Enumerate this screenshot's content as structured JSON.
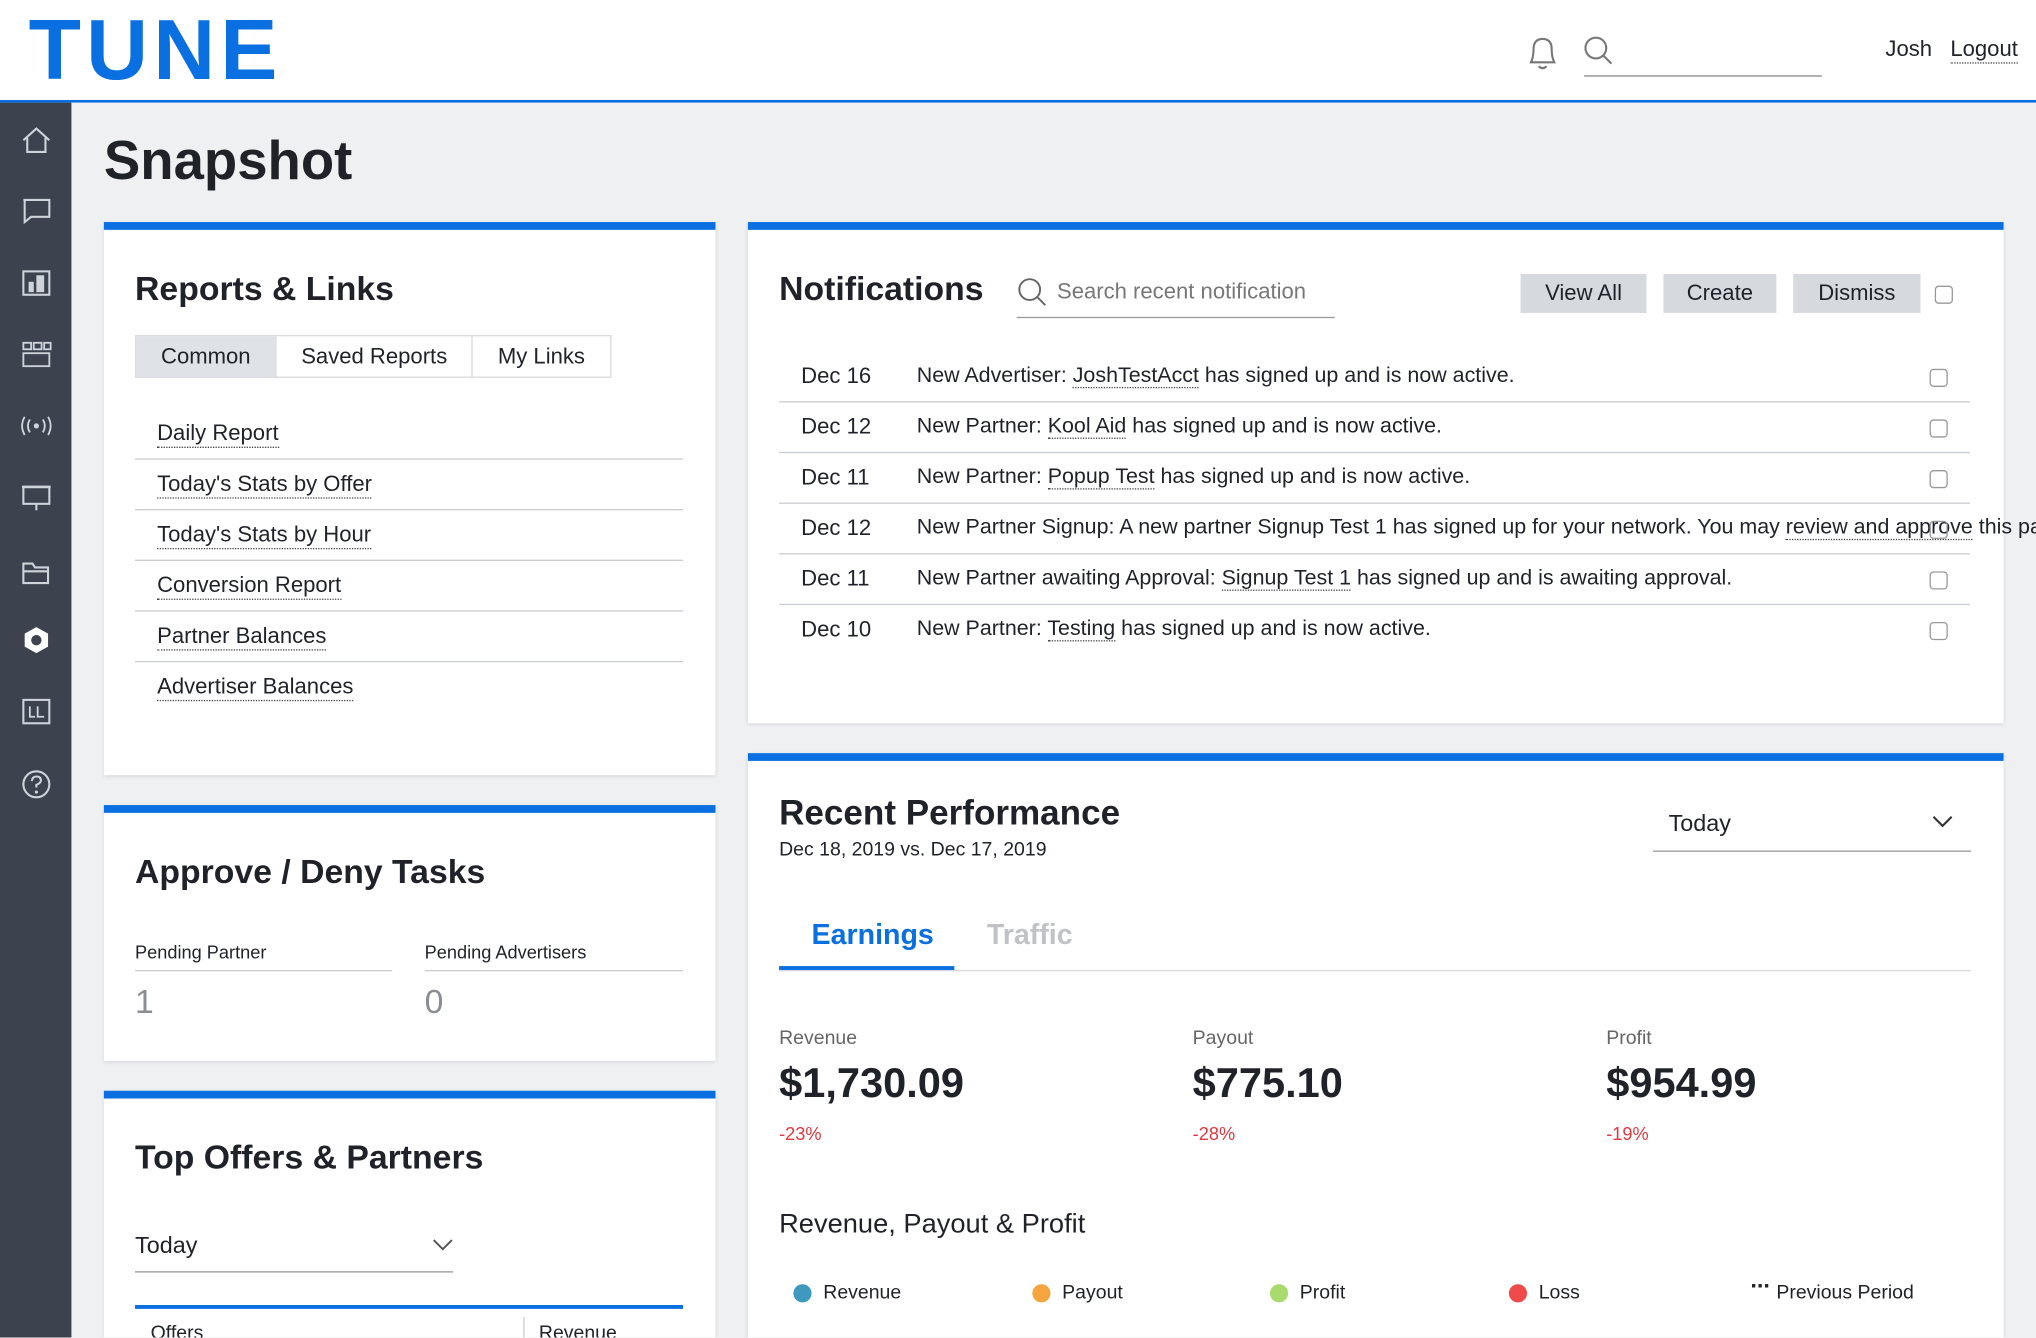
{
  "header": {
    "logo": "TUNE",
    "user": "Josh",
    "logout": "Logout"
  },
  "page_title": "Snapshot",
  "reports": {
    "title": "Reports & Links",
    "tabs": [
      "Common",
      "Saved Reports",
      "My Links"
    ],
    "links": [
      "Daily Report",
      "Today's Stats by Offer",
      "Today's Stats by Hour",
      "Conversion Report",
      "Partner Balances",
      "Advertiser Balances"
    ]
  },
  "approve": {
    "title": "Approve / Deny Tasks",
    "items": [
      {
        "label": "Pending Partner",
        "value": 1
      },
      {
        "label": "Pending Advertisers",
        "value": 0
      }
    ]
  },
  "top_offers": {
    "title": "Top Offers & Partners",
    "period": "Today",
    "columns": [
      "Offers",
      "Revenue"
    ]
  },
  "notifications": {
    "title": "Notifications",
    "search_placeholder": "Search recent notification",
    "buttons": [
      "View All",
      "Create",
      "Dismiss"
    ],
    "items": [
      {
        "date": "Dec 16",
        "before": "New Advertiser: ",
        "link": "JoshTestAcct",
        "after": " has signed up and is now active."
      },
      {
        "date": "Dec 12",
        "before": "New Partner: ",
        "link": "Kool Aid",
        "after": " has signed up and is now active."
      },
      {
        "date": "Dec 11",
        "before": "New Partner: ",
        "link": "Popup Test",
        "after": " has signed up and is now active."
      },
      {
        "date": "Dec 12",
        "before": "New Partner Signup: A new partner Signup Test 1 has signed up for your network. You may ",
        "link": "review and approve",
        "after": " this partner."
      },
      {
        "date": "Dec 11",
        "before": "New Partner awaiting Approval: ",
        "link": "Signup Test 1",
        "after": " has signed up and is awaiting approval."
      },
      {
        "date": "Dec 10",
        "before": "New Partner: ",
        "link": "Testing",
        "after": " has signed up and is now active."
      }
    ]
  },
  "performance": {
    "title": "Recent Performance",
    "subtitle": "Dec 18, 2019 vs. Dec 17, 2019",
    "period": "Today",
    "tabs": [
      "Earnings",
      "Traffic"
    ],
    "metrics": [
      {
        "label": "Revenue",
        "value": "$1,730.09",
        "change": "-23%"
      },
      {
        "label": "Payout",
        "value": "$775.10",
        "change": "-28%"
      },
      {
        "label": "Profit",
        "value": "$954.99",
        "change": "-19%"
      }
    ],
    "chart_title": "Revenue, Payout & Profit",
    "legend": [
      {
        "name": "Revenue",
        "color": "#3f98bd"
      },
      {
        "name": "Payout",
        "color": "#f4a53f"
      },
      {
        "name": "Profit",
        "color": "#a8da6c"
      },
      {
        "name": "Loss",
        "color": "#ef4a4a"
      },
      {
        "name": "Previous Period",
        "color": null
      }
    ]
  }
}
